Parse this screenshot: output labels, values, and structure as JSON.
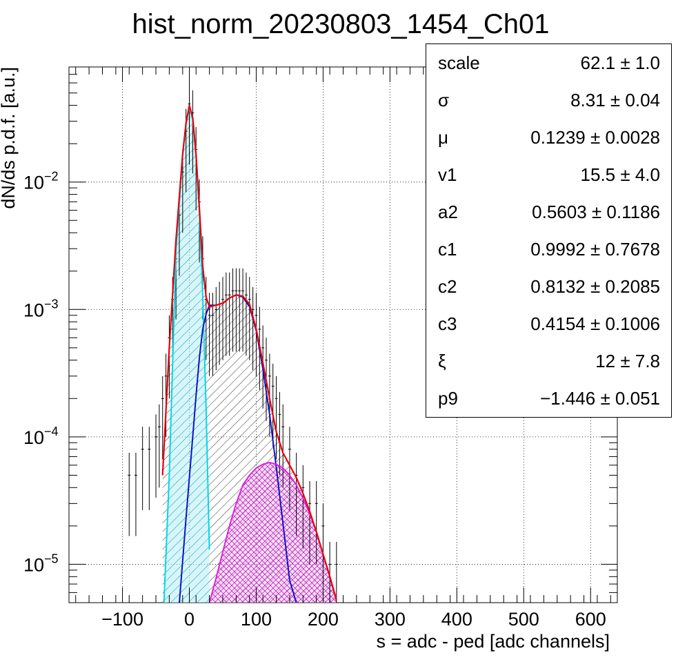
{
  "chart_data": {
    "type": "histogram",
    "title": "hist_norm_20230803_1454_Ch01",
    "xlabel": "s = adc - ped [adc channels]",
    "ylabel": "dN/ds p.d.f. [a.u.]",
    "xlim": [
      -180,
      640
    ],
    "ylim": [
      5e-06,
      0.08
    ],
    "yscale": "log",
    "grid": true,
    "x_ticks": [
      -100,
      0,
      100,
      200,
      300,
      400,
      500,
      600
    ],
    "x_tick_labels": [
      "−100",
      "0",
      "100",
      "200",
      "300",
      "400",
      "500",
      "600"
    ],
    "y_ticks": [
      {
        "value": 1e-05,
        "base": "10",
        "exp": "−5"
      },
      {
        "value": 0.0001,
        "base": "10",
        "exp": "−4"
      },
      {
        "value": 0.001,
        "base": "10",
        "exp": "−3"
      },
      {
        "value": 0.01,
        "base": "10",
        "exp": "−2"
      }
    ],
    "series": [
      {
        "role": "data",
        "color": "#000000",
        "x": [
          -90,
          -80,
          -70,
          -60,
          -50,
          -45,
          -40,
          -35,
          -30,
          -25,
          -20,
          -15,
          -10,
          -5,
          0,
          5,
          10,
          15,
          20,
          25,
          30,
          35,
          40,
          45,
          50,
          55,
          60,
          65,
          70,
          75,
          80,
          85,
          90,
          95,
          100,
          105,
          110,
          115,
          120,
          125,
          130,
          135,
          140,
          150,
          160,
          170,
          180,
          190,
          200,
          210,
          220
        ],
        "y": [
          5e-05,
          5e-05,
          8e-05,
          8e-05,
          0.0001,
          0.00012,
          0.0002,
          0.0003,
          0.0006,
          0.0012,
          0.0025,
          0.0055,
          0.012,
          0.025,
          0.041,
          0.035,
          0.018,
          0.007,
          0.0025,
          0.0012,
          0.0009,
          0.0009,
          0.001,
          0.0011,
          0.0012,
          0.0013,
          0.0013,
          0.0014,
          0.0014,
          0.0014,
          0.0014,
          0.0013,
          0.0012,
          0.001,
          0.0009,
          0.0007,
          0.0005,
          0.0004,
          0.0003,
          0.00025,
          0.0002,
          0.00015,
          0.00012,
          8e-05,
          5e-05,
          4e-05,
          3e-05,
          3e-05,
          2e-05,
          1e-05,
          1e-05
        ]
      },
      {
        "role": "total fit",
        "color": "#e8000b",
        "x": [
          -40,
          -30,
          -20,
          -10,
          -5,
          0,
          5,
          10,
          15,
          20,
          25,
          30,
          40,
          50,
          60,
          70,
          80,
          90,
          100,
          110,
          120,
          130,
          140,
          150,
          160,
          170,
          180,
          190,
          200,
          210,
          220
        ],
        "y": [
          5e-05,
          0.0005,
          0.0035,
          0.0165,
          0.029,
          0.04,
          0.032,
          0.0165,
          0.0062,
          0.0022,
          0.00125,
          0.00105,
          0.00108,
          0.00112,
          0.00123,
          0.0013,
          0.00127,
          0.0011,
          0.0007,
          0.00038,
          0.0002,
          0.00011,
          7.5e-05,
          6e-05,
          4.8e-05,
          3.6e-05,
          2.6e-05,
          1.8e-05,
          1.2e-05,
          8e-06,
          5.2e-06
        ]
      },
      {
        "role": "pedestal component",
        "color": "#00d8e8",
        "fill": "#00c8e0",
        "x": [
          -38,
          -30,
          -20,
          -10,
          -5,
          0,
          5,
          10,
          15,
          20,
          25,
          30
        ],
        "y": [
          5e-06,
          5e-05,
          0.0028,
          0.0165,
          0.029,
          0.038,
          0.031,
          0.0165,
          0.0058,
          0.0013,
          0.00017,
          1.3e-05
        ]
      },
      {
        "role": "1 p.e. component",
        "color": "#1010c8",
        "x": [
          -15,
          -5,
          5,
          10,
          15,
          20,
          25,
          30,
          40,
          50,
          60,
          70,
          80,
          90,
          100,
          110,
          120,
          130,
          140,
          150,
          160
        ],
        "y": [
          5e-06,
          2.3e-05,
          0.0001,
          0.00021,
          0.00042,
          0.0007,
          0.00092,
          0.00108,
          0.00108,
          0.00112,
          0.00123,
          0.0013,
          0.00125,
          0.00105,
          0.00068,
          0.00034,
          0.00015,
          5.8e-05,
          2.1e-05,
          7.5e-06,
          5e-06
        ]
      },
      {
        "role": "2 p.e. component",
        "color": "#e020e0",
        "fill": "#c000c0",
        "x": [
          30,
          40,
          50,
          60,
          70,
          80,
          90,
          100,
          110,
          120,
          130,
          140,
          150,
          160,
          170,
          180,
          190,
          200,
          210,
          220
        ],
        "y": [
          5e-06,
          7.8e-06,
          1.25e-05,
          2e-05,
          3e-05,
          4.2e-05,
          5e-05,
          5.7e-05,
          6.1e-05,
          6.3e-05,
          6.1e-05,
          5.7e-05,
          5e-05,
          4.2e-05,
          3.3e-05,
          2.5e-05,
          1.8e-05,
          1.2e-05,
          8.1e-06,
          5.3e-06
        ]
      }
    ]
  },
  "stats_box": [
    {
      "name": "scale",
      "value": "62.1 ± 1.0"
    },
    {
      "name": "σ",
      "value": "8.31 ± 0.04"
    },
    {
      "name": "μ",
      "value": "0.1239 ± 0.0028"
    },
    {
      "name": "v1",
      "value": "15.5 ± 4.0"
    },
    {
      "name": "a2",
      "value": "0.5603 ± 0.1186"
    },
    {
      "name": "c1",
      "value": "0.9992 ± 0.7678"
    },
    {
      "name": "c2",
      "value": "0.8132 ± 0.2085"
    },
    {
      "name": "c3",
      "value": "0.4154 ± 0.1006"
    },
    {
      "name": "ξ",
      "value": "12 ± 7.8"
    },
    {
      "name": "p9",
      "value": "−1.446 ± 0.051"
    }
  ]
}
